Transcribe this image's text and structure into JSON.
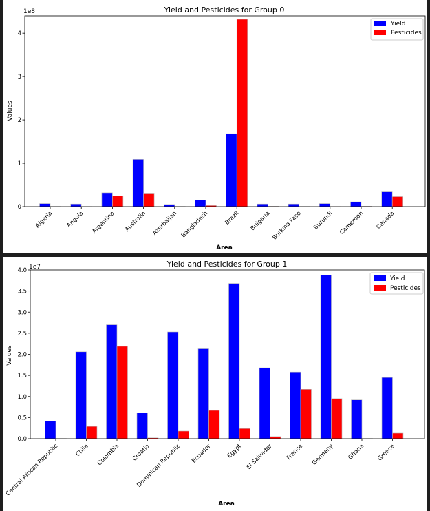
{
  "colors": {
    "yield": "#0000ff",
    "pesticides": "#ff0000",
    "edge": "#bbbbbb"
  },
  "chart_data": [
    {
      "type": "bar",
      "title": "Yield and Pesticides for Group 0",
      "xlabel": "Area",
      "ylabel": "Values",
      "exponent_label": "1e8",
      "ylim": [
        0,
        4.4
      ],
      "yticks": [
        0,
        1,
        2,
        3,
        4
      ],
      "ytick_labels": [
        "0",
        "1",
        "2",
        "3",
        "4"
      ],
      "grid": false,
      "legend_position": "top-right",
      "categories": [
        "Algeria",
        "Angola",
        "Argentina",
        "Australia",
        "Azerbaijan",
        "Bangladesh",
        "Brazil",
        "Bulgaria",
        "Burkina Faso",
        "Burundi",
        "Cameroon",
        "Canada"
      ],
      "series": [
        {
          "name": "Yield",
          "color": "#0000ff",
          "values": [
            0.07,
            0.06,
            0.32,
            1.09,
            0.05,
            0.15,
            1.68,
            0.06,
            0.06,
            0.07,
            0.11,
            0.34
          ]
        },
        {
          "name": "Pesticides",
          "color": "#ff0000",
          "values": [
            0.005,
            0.003,
            0.25,
            0.31,
            0.004,
            0.025,
            4.32,
            0.01,
            0.005,
            0.002,
            0.01,
            0.23
          ]
        }
      ]
    },
    {
      "type": "bar",
      "title": "Yield and Pesticides for Group 1",
      "xlabel": "Area",
      "ylabel": "Values",
      "exponent_label": "1e7",
      "ylim": [
        0,
        4.0
      ],
      "yticks": [
        0,
        0.5,
        1,
        1.5,
        2,
        2.5,
        3,
        3.5,
        4
      ],
      "ytick_labels": [
        "0.0",
        "0.5",
        "1.0",
        "1.5",
        "2.0",
        "2.5",
        "3.0",
        "3.5",
        "4.0"
      ],
      "grid": false,
      "legend_position": "top-right",
      "categories": [
        "Central African Republic",
        "Chile",
        "Colombia",
        "Croatia",
        "Dominican Republic",
        "Ecuador",
        "Egypt",
        "El Salvador",
        "France",
        "Germany",
        "Ghana",
        "Greece"
      ],
      "series": [
        {
          "name": "Yield",
          "color": "#0000ff",
          "values": [
            0.42,
            2.06,
            2.7,
            0.61,
            2.53,
            2.13,
            3.68,
            1.68,
            1.58,
            3.88,
            0.92,
            1.45
          ]
        },
        {
          "name": "Pesticides",
          "color": "#ff0000",
          "values": [
            0.005,
            0.29,
            2.19,
            0.02,
            0.18,
            0.67,
            0.24,
            0.05,
            1.17,
            0.95,
            0.005,
            0.13
          ]
        }
      ]
    }
  ]
}
